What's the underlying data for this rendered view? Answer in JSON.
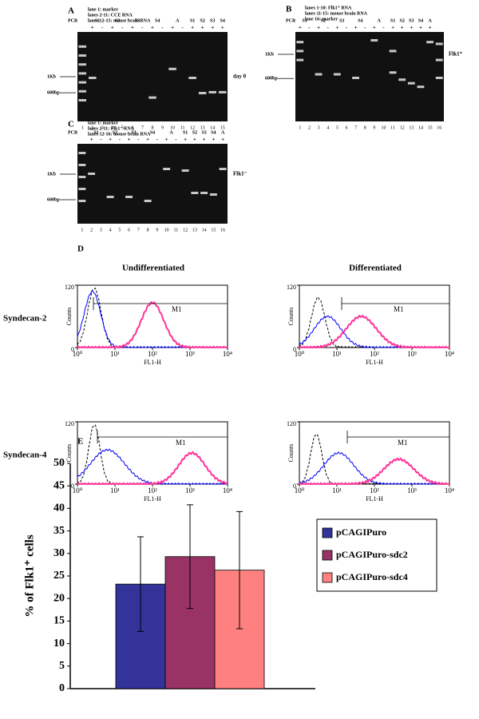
{
  "panels": [
    {
      "letter": "A",
      "notes": [
        "lane 1: marker",
        "lanes 2-11: CCE RNA",
        "lanes 12-15: mouse brain RNA"
      ],
      "pcr": "PCR",
      "headers": [
        "S1",
        "S2",
        "S3",
        "S4",
        "A",
        "S1",
        "S2",
        "S3",
        "S4"
      ],
      "signs": [
        null,
        "+",
        "-",
        "+",
        "-",
        "+",
        "-",
        "+",
        "-",
        "+",
        "-",
        "+",
        "+",
        "+",
        "+"
      ],
      "lanes": [
        1,
        2,
        3,
        4,
        5,
        6,
        7,
        8,
        9,
        10,
        11,
        12,
        13,
        14,
        15
      ],
      "markers": [
        "1Kb",
        "600bp"
      ],
      "side": "day 0"
    },
    {
      "letter": "B",
      "notes": [
        "lanes 1-10: Flk1⁺ RNA",
        "lanes 11-15: mouse brain RNA",
        "lane 16: marker"
      ],
      "pcr": "PCR",
      "headers": [
        "S1",
        "S2",
        "S3",
        "S4",
        "A",
        "S1",
        "S2",
        "S3",
        "S4",
        "A"
      ],
      "signs": [
        "+",
        "-",
        "+",
        "-",
        "+",
        "-",
        "+",
        "-",
        "+",
        "-",
        "+",
        "+",
        "+",
        "+",
        "+",
        null
      ],
      "lanes": [
        1,
        2,
        3,
        4,
        5,
        6,
        7,
        8,
        9,
        10,
        11,
        12,
        13,
        14,
        15,
        16
      ],
      "markers": [
        "1Kb",
        "600bp"
      ],
      "side": "Flk1⁺"
    },
    {
      "letter": "C",
      "notes": [
        "lane 1: marker",
        "lanes 2-11: Flk1⁻ RNA",
        "lanes 12-16: mouse brain RNA"
      ],
      "pcr": "PCR",
      "headers": [
        "S1",
        "S2",
        "S3",
        "S4",
        "A",
        "S1",
        "S2",
        "S3",
        "S4",
        "A"
      ],
      "signs": [
        null,
        "+",
        "-",
        "+",
        "-",
        "+",
        "-",
        "+",
        "-",
        "+",
        "-",
        "+",
        "+",
        "+",
        "+",
        "+"
      ],
      "lanes": [
        1,
        2,
        3,
        4,
        5,
        6,
        7,
        8,
        9,
        10,
        11,
        12,
        13,
        14,
        15,
        16
      ],
      "markers": [
        "1Kb",
        "600bp"
      ],
      "side": "Flk1⁻"
    }
  ],
  "flow": {
    "letter": "D",
    "columns": [
      "Undifferentiated",
      "Differentiated"
    ],
    "rows": [
      "Syndecan-2",
      "Syndecan-4"
    ],
    "ylabel": "Counts",
    "xlabel": "FL1-H",
    "gate": "M1",
    "xscale": "log",
    "xlim": [
      1,
      10000
    ],
    "ylim": [
      0,
      120
    ],
    "xticks": [
      {
        "value": 1,
        "label": "10⁰"
      },
      {
        "value": 10,
        "label": "10¹"
      },
      {
        "value": 100,
        "label": "10²"
      },
      {
        "value": 1000,
        "label": "10³"
      },
      {
        "value": 10000,
        "label": "10⁴"
      }
    ],
    "yticks": [
      0,
      120
    ]
  },
  "chart_data": {
    "type": "bar",
    "letter": "E",
    "ylabel": "% of Flk1⁺ cells",
    "categories": [
      null
    ],
    "series": [
      {
        "name": "pCAGIPuro",
        "color": "#333399",
        "values": [
          23.2
        ],
        "errors": [
          10.5
        ]
      },
      {
        "name": "pCAGIPuro-sdc2",
        "color": "#993366",
        "values": [
          29.3
        ],
        "errors": [
          11.5
        ]
      },
      {
        "name": "pCAGIPuro-sdc4",
        "color": "#ff8080",
        "values": [
          26.3
        ],
        "errors": [
          13
        ]
      }
    ],
    "ylim": [
      0,
      50
    ],
    "yticks": [
      0,
      5,
      10,
      15,
      20,
      25,
      30,
      35,
      40,
      45,
      50
    ],
    "legend": "right"
  }
}
